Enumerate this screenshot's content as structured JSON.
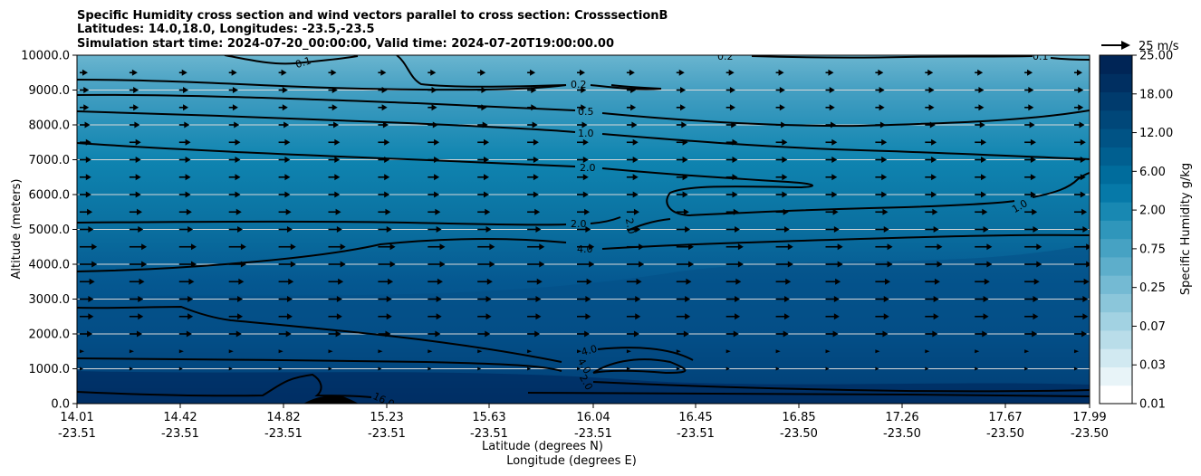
{
  "chart_data": {
    "type": "heatmap",
    "title_lines": [
      "Specific Humidity cross section and wind vectors parallel to cross section: CrosssectionB",
      "Latitudes: 14.0,18.0, Longitudes: -23.5,-23.5",
      "Simulation start time: 2024-07-20_00:00:00, Valid time: 2024-07-20T19:00:00.00"
    ],
    "ylabel": "Altitude (meters)",
    "xlabel_lat": "Latitude (degrees N)",
    "xlabel_lon": "Longitude (degrees E)",
    "ylim": [
      0,
      10000
    ],
    "y_ticks": [
      "0.0",
      "1000.0",
      "2000.0",
      "3000.0",
      "4000.0",
      "5000.0",
      "6000.0",
      "7000.0",
      "8000.0",
      "9000.0",
      "10000.0"
    ],
    "x_ticks": [
      {
        "lat": "14.01",
        "lon": "-23.51"
      },
      {
        "lat": "14.42",
        "lon": "-23.51"
      },
      {
        "lat": "14.82",
        "lon": "-23.51"
      },
      {
        "lat": "15.23",
        "lon": "-23.51"
      },
      {
        "lat": "15.63",
        "lon": "-23.51"
      },
      {
        "lat": "16.04",
        "lon": "-23.51"
      },
      {
        "lat": "16.45",
        "lon": "-23.51"
      },
      {
        "lat": "16.85",
        "lon": "-23.50"
      },
      {
        "lat": "17.26",
        "lon": "-23.50"
      },
      {
        "lat": "17.67",
        "lon": "-23.50"
      },
      {
        "lat": "17.99",
        "lon": "-23.50"
      }
    ],
    "grid": "horizontal",
    "colorbar": {
      "label": "Specific Humidity g/kg",
      "tick_labels": [
        "0.01",
        "0.03",
        "0.07",
        "0.25",
        "0.75",
        "2.00",
        "6.00",
        "12.00",
        "18.00",
        "25.00"
      ],
      "colors": [
        "#ffffff",
        "#e8f4f8",
        "#d1e9f1",
        "#b9dde9",
        "#a2d2e2",
        "#8bc6da",
        "#74bad3",
        "#5daecb",
        "#46a2c3",
        "#2f96bb",
        "#1888b2",
        "#0679a8",
        "#006c9c",
        "#005f90",
        "#005385",
        "#004779",
        "#003b6d",
        "#002f61",
        "#002556"
      ]
    },
    "contour_levels": [
      "0.1",
      "0.2",
      "0.5",
      "1.0",
      "2.0",
      "4.0",
      "16.0"
    ],
    "contour_label_texts": [
      "0.1",
      "0.2",
      "0.1",
      "0.2",
      "0.5",
      "1.0",
      "2.0",
      "2.0",
      "2.0",
      "1.0",
      "4.0",
      "4.0",
      "4.0",
      "2.0",
      "16.0"
    ],
    "wind_reference": {
      "value": 25,
      "label": "25 m/s"
    },
    "wind_arrow_rows": [
      {
        "altitude": 9500,
        "speed": 7
      },
      {
        "altitude": 9000,
        "speed": 8
      },
      {
        "altitude": 8500,
        "speed": 8
      },
      {
        "altitude": 8000,
        "speed": 9
      },
      {
        "altitude": 7500,
        "speed": 10
      },
      {
        "altitude": 7000,
        "speed": 10
      },
      {
        "altitude": 6500,
        "speed": 10
      },
      {
        "altitude": 6000,
        "speed": 10
      },
      {
        "altitude": 5500,
        "speed": 11
      },
      {
        "altitude": 5000,
        "speed": 12
      },
      {
        "altitude": 4500,
        "speed": 15
      },
      {
        "altitude": 4000,
        "speed": 15
      },
      {
        "altitude": 3500,
        "speed": 13
      },
      {
        "altitude": 3000,
        "speed": 12
      },
      {
        "altitude": 2500,
        "speed": 12
      },
      {
        "altitude": 2000,
        "speed": 11
      },
      {
        "altitude": 1500,
        "speed": 4
      },
      {
        "altitude": 1000,
        "speed": 2
      }
    ]
  }
}
